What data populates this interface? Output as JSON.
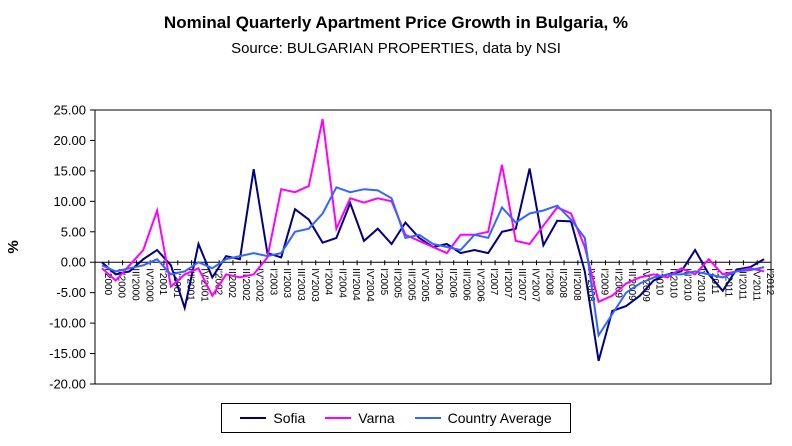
{
  "chart_data": {
    "type": "line",
    "title": "Nominal Quarterly Apartment Price Growth in Bulgaria, %",
    "subtitle": "Source: BULGARIAN PROPERTIES, data by NSI",
    "ylabel": "%",
    "ylim": [
      -20,
      25
    ],
    "ytick_step": 5,
    "ytick_decimals": 2,
    "grid": false,
    "legend_position": "bottom",
    "categories": [
      "I'2000",
      "II'2000",
      "III'2000",
      "IV'2000",
      "I'2001",
      "II'2001",
      "III'2001",
      "IV'2001",
      "I'2002",
      "II'2002",
      "III'2002",
      "IV'2002",
      "I'2003",
      "II'2003",
      "III'2003",
      "IV'2003",
      "I'2004",
      "II'2004",
      "III'2004",
      "IV'2004",
      "I'2005",
      "II'2005",
      "III'2005",
      "IV'2005",
      "I'2006",
      "II'2006",
      "III'2006",
      "IV'2006",
      "I'2007",
      "II'2007",
      "III'2007",
      "IV'2007",
      "I'2008",
      "II'2008",
      "III'2008",
      "IV'2008",
      "I'2009",
      "II'2009",
      "III'2009",
      "IV'2009",
      "I'2010",
      "II'2010",
      "III'2010",
      "IV'2010",
      "I'2011",
      "II'2011",
      "III'2011",
      "IV'2011",
      "I'2012"
    ],
    "series": [
      {
        "name": "Sofia",
        "color": "#000080",
        "values": [
          0.0,
          -2.0,
          -1.5,
          0.5,
          2.0,
          -0.5,
          -7.5,
          3.0,
          -2.5,
          1.0,
          0.5,
          15.3,
          1.5,
          0.8,
          8.7,
          7.0,
          3.2,
          4.0,
          9.7,
          3.5,
          5.5,
          3.0,
          6.5,
          4.0,
          2.5,
          3.0,
          1.5,
          2.0,
          1.5,
          5.0,
          5.5,
          15.4,
          2.8,
          6.8,
          6.7,
          -1.5,
          -16.2,
          -8.0,
          -7.2,
          -5.5,
          -3.0,
          -2.0,
          -1.5,
          2.0,
          -2.0,
          -4.7,
          -1.2,
          -0.8,
          0.5
        ]
      },
      {
        "name": "Varna",
        "color": "#FF00FF",
        "values": [
          -1.0,
          -3.0,
          -0.5,
          2.0,
          8.5,
          -4.0,
          -2.0,
          -1.0,
          -5.5,
          -2.0,
          -2.5,
          -2.0,
          0.8,
          12.0,
          11.5,
          12.5,
          23.5,
          5.5,
          10.5,
          9.8,
          10.5,
          10.0,
          4.5,
          3.5,
          2.5,
          1.5,
          4.5,
          4.5,
          5.0,
          16.0,
          3.5,
          3.0,
          6.0,
          9.0,
          8.0,
          2.5,
          -6.5,
          -5.5,
          -3.5,
          -2.5,
          -2.0,
          -2.5,
          -1.0,
          -2.0,
          0.5,
          -2.0,
          -1.5,
          -1.0,
          -1.5
        ]
      },
      {
        "name": "Country Average",
        "color": "#3366FF",
        "values": [
          -0.5,
          -1.5,
          -1.0,
          -0.5,
          0.5,
          -2.0,
          -1.5,
          0.0,
          -1.0,
          0.5,
          1.0,
          1.5,
          1.0,
          1.5,
          5.0,
          5.5,
          8.0,
          12.3,
          11.5,
          12.0,
          11.8,
          10.5,
          4.0,
          4.5,
          3.0,
          2.5,
          2.0,
          4.5,
          4.0,
          9.0,
          6.5,
          8.0,
          8.5,
          9.3,
          7.0,
          4.0,
          -12.0,
          -8.5,
          -5.0,
          -3.5,
          -2.5,
          -2.0,
          -2.0,
          -1.5,
          -2.0,
          -2.5,
          -1.5,
          -1.3,
          -0.8
        ]
      }
    ]
  }
}
